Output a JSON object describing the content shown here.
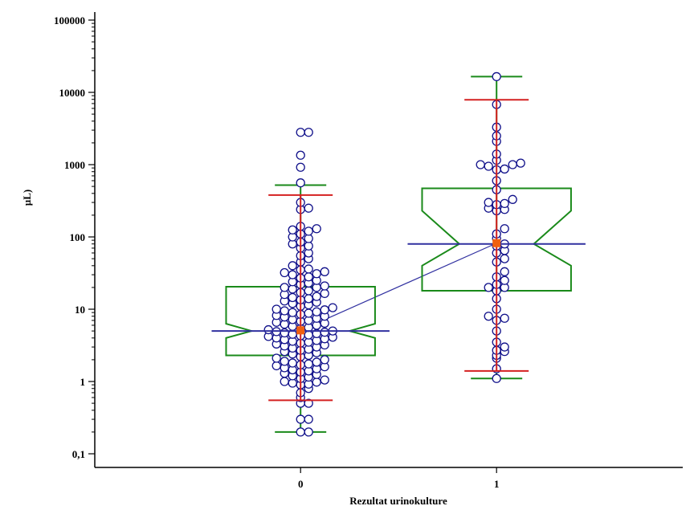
{
  "chart_data": {
    "type": "box",
    "xlabel": "Rezultat urinokulture",
    "ylabel": "µL)",
    "yscale": "log",
    "ylim": [
      0.1,
      100000
    ],
    "y_ticks": [
      0.1,
      1,
      10,
      100,
      1000,
      10000,
      100000
    ],
    "y_tick_labels": [
      "0,1",
      "1",
      "10",
      "100",
      "1000",
      "10000",
      "100000"
    ],
    "x_ticks": [
      0,
      1
    ],
    "x_tick_labels": [
      "0",
      "1"
    ],
    "xlim": [
      -1.05,
      1.95
    ],
    "box_color": "#1a8a1a",
    "median_color": "#3030a0",
    "whisker_red_color": "#d42020",
    "mean_color": "#f06010",
    "point_color": "#10108a",
    "mean_line_color": "#3030a0",
    "groups": [
      {
        "x": 0,
        "box_half_width": 0.38,
        "notch_half_width": 0.25,
        "q1": 2.3,
        "median": 5.0,
        "q3": 20.5,
        "notch_low": 4.0,
        "notch_high": 6.3,
        "whisker_low": 0.2,
        "whisker_high": 520,
        "red_whisker_low": 0.55,
        "red_whisker_high": 380,
        "mean": 5.1,
        "points": [
          2800,
          2800,
          1350,
          920,
          560,
          300,
          250,
          240,
          140,
          130,
          125,
          120,
          110,
          100,
          95,
          85,
          80,
          75,
          70,
          60,
          55,
          50,
          45,
          40,
          36,
          35,
          33,
          32,
          31,
          30,
          28,
          27,
          25,
          24,
          23,
          22,
          21,
          20,
          20,
          19,
          18,
          17,
          16.5,
          16,
          15,
          14.5,
          14,
          13.5,
          13,
          12.5,
          12,
          11.5,
          11,
          10.5,
          10,
          9.8,
          9.5,
          9.2,
          9,
          8.8,
          8.5,
          8.2,
          8,
          7.8,
          7.5,
          7.2,
          7,
          6.8,
          6.6,
          6.4,
          6.2,
          6,
          5.8,
          5.6,
          5.4,
          5.2,
          5,
          4.9,
          4.8,
          4.7,
          4.6,
          4.5,
          4.4,
          4.3,
          4.2,
          4.1,
          4,
          3.9,
          3.8,
          3.7,
          3.6,
          3.5,
          3.4,
          3.3,
          3.2,
          3.1,
          3,
          2.9,
          2.8,
          2.7,
          2.6,
          2.5,
          2.4,
          2.3,
          2.2,
          2.1,
          2,
          1.9,
          1.85,
          1.8,
          1.75,
          1.7,
          1.65,
          1.6,
          1.55,
          1.5,
          1.45,
          1.4,
          1.35,
          1.3,
          1.25,
          1.2,
          1.15,
          1.1,
          1.05,
          1,
          0.98,
          0.95,
          0.92,
          0.9,
          0.8,
          0.7,
          0.6,
          0.5,
          0.5,
          0.3,
          0.3,
          0.2,
          0.2
        ]
      },
      {
        "x": 1,
        "box_half_width": 0.38,
        "notch_half_width": 0.19,
        "q1": 18,
        "median": 80,
        "q3": 470,
        "notch_low": 40,
        "notch_high": 230,
        "whisker_low": 1.1,
        "whisker_high": 16500,
        "red_whisker_low": 1.4,
        "red_whisker_high": 7900,
        "mean": 82,
        "points": [
          16500,
          6800,
          3300,
          2500,
          2100,
          1400,
          1150,
          1050,
          1000,
          1000,
          950,
          870,
          850,
          600,
          450,
          330,
          300,
          290,
          280,
          250,
          240,
          230,
          130,
          110,
          95,
          80,
          75,
          65,
          60,
          50,
          45,
          33,
          28,
          25,
          22,
          20,
          20,
          18,
          14,
          10,
          8,
          7.5,
          7,
          5,
          3.5,
          3,
          2.7,
          2.6,
          2.3,
          2.1,
          1.5,
          1.1
        ]
      }
    ]
  }
}
